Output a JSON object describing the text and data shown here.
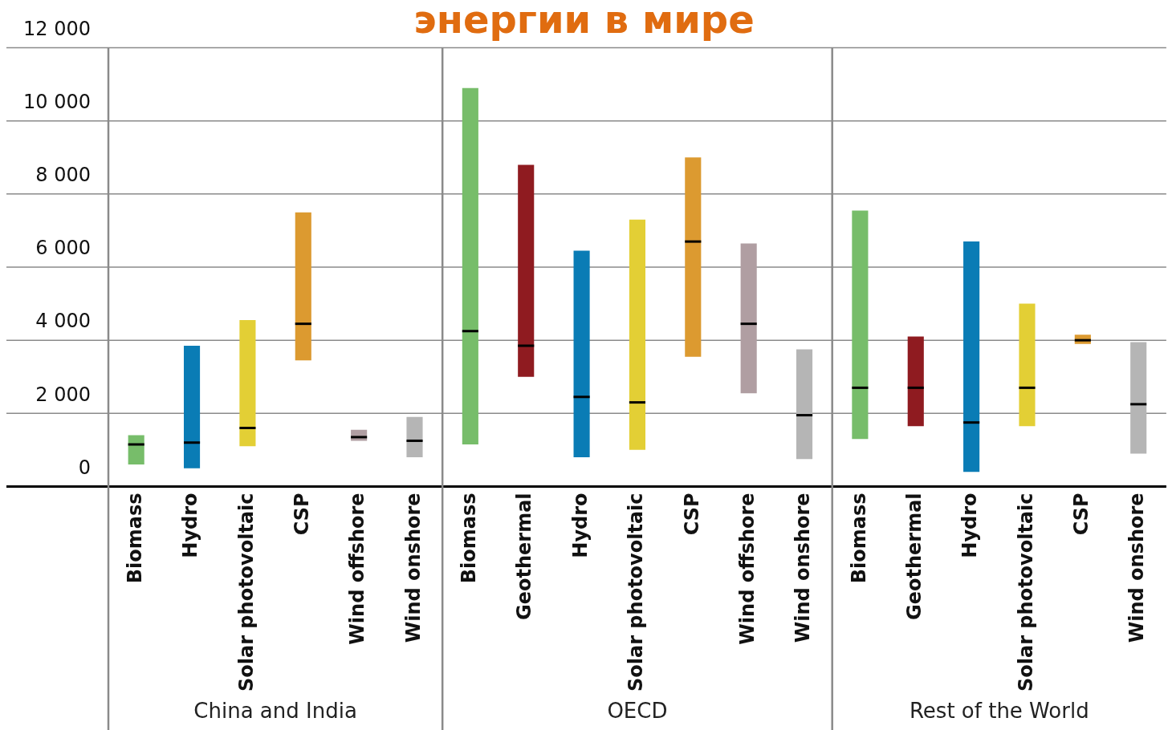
{
  "chart_data": {
    "type": "box",
    "title": "энергии в мире",
    "categories": [
      "Biomass",
      "Hydro",
      "Solar photovoltaic",
      "CSP",
      "Wind offshore",
      "Wind onshore",
      "Biomass",
      "Geothermal",
      "Hydro",
      "Solar photovoltaic",
      "CSP",
      "Wind offshore",
      "Wind onshore",
      "Biomass",
      "Geothermal",
      "Hydro",
      "Solar photovoltaic",
      "CSP",
      "Wind onshore"
    ],
    "boxes": [
      {
        "low": 600,
        "q1": 600,
        "median": 1150,
        "q3": 1400,
        "high": 1400
      },
      {
        "low": 500,
        "q1": 500,
        "median": 1200,
        "q3": 3850,
        "high": 3850
      },
      {
        "low": 1100,
        "q1": 1100,
        "median": 1600,
        "q3": 4550,
        "high": 4550
      },
      {
        "low": 3450,
        "q1": 3450,
        "median": 4450,
        "q3": 7500,
        "high": 7500
      },
      {
        "low": 1250,
        "q1": 1250,
        "median": 1350,
        "q3": 1550,
        "high": 1550
      },
      {
        "low": 800,
        "q1": 800,
        "median": 1250,
        "q3": 1900,
        "high": 1900
      },
      {
        "low": 1150,
        "q1": 1150,
        "median": 4250,
        "q3": 10900,
        "high": 10900
      },
      {
        "low": 3000,
        "q1": 3000,
        "median": 3850,
        "q3": 8800,
        "high": 8800
      },
      {
        "low": 800,
        "q1": 800,
        "median": 2450,
        "q3": 6450,
        "high": 6450
      },
      {
        "low": 1000,
        "q1": 1000,
        "median": 2300,
        "q3": 7300,
        "high": 7300
      },
      {
        "low": 3550,
        "q1": 3550,
        "median": 6700,
        "q3": 9000,
        "high": 9000
      },
      {
        "low": 2550,
        "q1": 2550,
        "median": 4450,
        "q3": 6650,
        "high": 6650
      },
      {
        "low": 750,
        "q1": 750,
        "median": 1950,
        "q3": 3750,
        "high": 3750
      },
      {
        "low": 1300,
        "q1": 1300,
        "median": 2700,
        "q3": 7550,
        "high": 7550
      },
      {
        "low": 1650,
        "q1": 1650,
        "median": 2700,
        "q3": 4100,
        "high": 4100
      },
      {
        "low": 400,
        "q1": 400,
        "median": 1750,
        "q3": 6700,
        "high": 6700
      },
      {
        "low": 1650,
        "q1": 1650,
        "median": 2700,
        "q3": 5000,
        "high": 5000
      },
      {
        "low": 3900,
        "q1": 3900,
        "median": 4000,
        "q3": 4150,
        "high": 4150
      },
      {
        "low": 900,
        "q1": 900,
        "median": 2250,
        "q3": 3950,
        "high": 3950
      }
    ],
    "colors": [
      "#77bd6a",
      "#0a7cb5",
      "#e3cf35",
      "#dc9a30",
      "#b09ea2",
      "#b5b5b5",
      "#77bd6a",
      "#8f1b20",
      "#0a7cb5",
      "#e3cf35",
      "#dc9a30",
      "#b09ea2",
      "#b5b5b5",
      "#77bd6a",
      "#8f1b20",
      "#0a7cb5",
      "#e3cf35",
      "#dc9a30",
      "#b5b5b5"
    ],
    "ylim": [
      0,
      12000
    ],
    "yticks": [
      {
        "value": 0,
        "label": "0"
      },
      {
        "value": 2000,
        "label": "2 000"
      },
      {
        "value": 4000,
        "label": "4 000"
      },
      {
        "value": 6000,
        "label": "6 000"
      },
      {
        "value": 8000,
        "label": "8 000"
      },
      {
        "value": 10000,
        "label": "10 000"
      },
      {
        "value": 12000,
        "label": "12 000"
      }
    ],
    "grid": "y",
    "legend": false,
    "annotations": [
      "China and India",
      "OECD",
      "Rest of the World"
    ]
  }
}
